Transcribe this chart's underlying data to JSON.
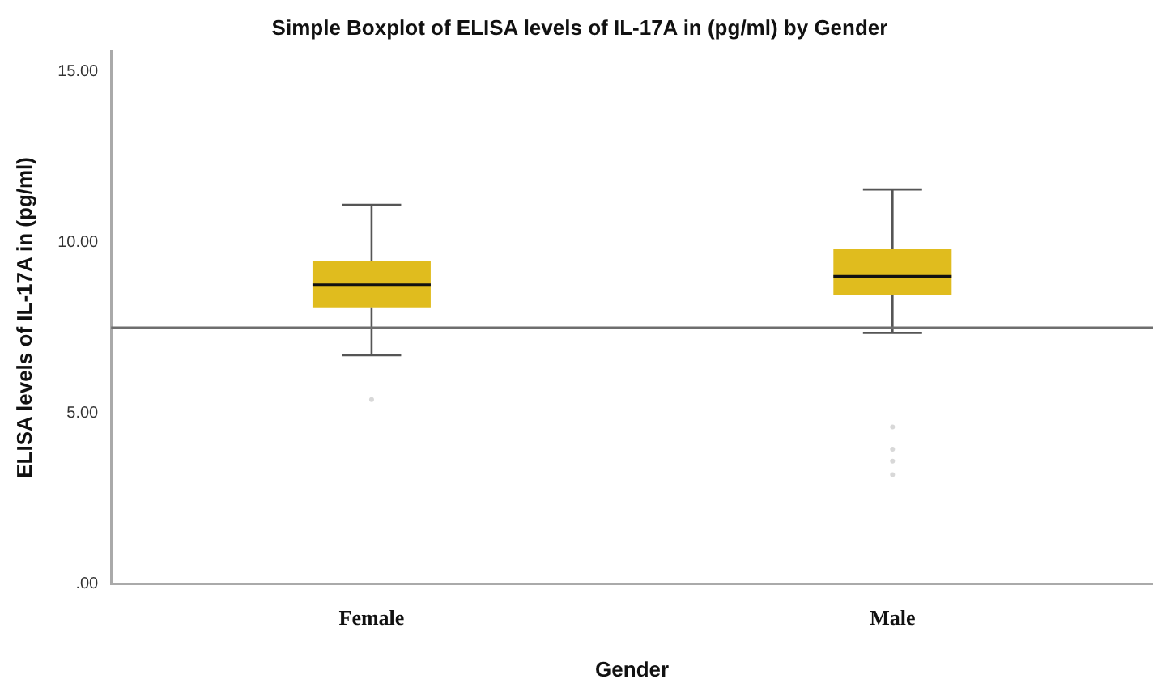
{
  "chart_data": {
    "type": "box",
    "title": "Simple Boxplot of ELISA levels of IL-17A in (pg/ml) by Gender",
    "xlabel": "Gender",
    "ylabel": "ELISA levels of IL-17A in (pg/ml)",
    "categories": [
      "Female",
      "Male"
    ],
    "boxes": [
      {
        "low": 6.7,
        "q1": 8.1,
        "median": 8.75,
        "q3": 9.45,
        "high": 11.1,
        "outliers": [
          5.4
        ]
      },
      {
        "low": 7.35,
        "q1": 8.45,
        "median": 9.0,
        "q3": 9.8,
        "high": 11.55,
        "outliers": [
          4.6,
          3.95,
          3.6,
          3.2
        ]
      }
    ],
    "color": "#e0bc1e",
    "ylim": [
      0,
      15.6
    ],
    "yticks": [
      {
        "value": 0,
        "label": ".00"
      },
      {
        "value": 5,
        "label": "5.00"
      },
      {
        "value": 10,
        "label": "10.00"
      },
      {
        "value": 15,
        "label": "15.00"
      }
    ],
    "ref_lines": [
      {
        "axis": "y",
        "value": 7.5,
        "color": "#6e6e6e"
      }
    ],
    "grid": false,
    "legend": false
  }
}
